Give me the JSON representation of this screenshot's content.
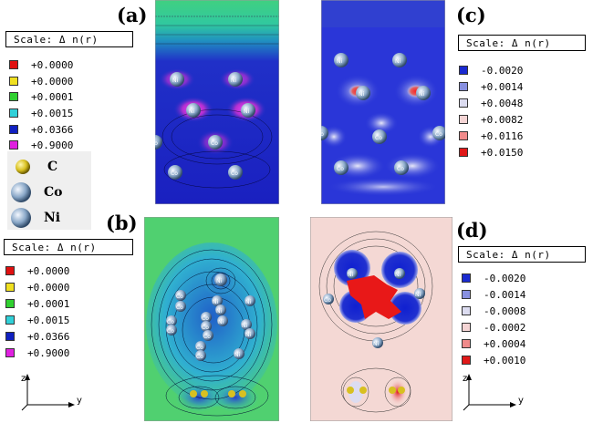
{
  "panels": {
    "a": {
      "letter": "(a)"
    },
    "b": {
      "letter": "(b)"
    },
    "c": {
      "letter": "(c)"
    },
    "d": {
      "letter": "(d)"
    }
  },
  "scale_label": "Scale:  Δ n(r)",
  "legend_a": [
    {
      "value": "+0.0000",
      "color": "#e01010"
    },
    {
      "value": "+0.0000",
      "color": "#f0e020"
    },
    {
      "value": "+0.0001",
      "color": "#30d030"
    },
    {
      "value": "+0.0015",
      "color": "#30d0d8"
    },
    {
      "value": "+0.0366",
      "color": "#1020c0"
    },
    {
      "value": "+0.9000",
      "color": "#e020e0"
    }
  ],
  "legend_b": [
    {
      "value": "+0.0000",
      "color": "#e01010"
    },
    {
      "value": "+0.0000",
      "color": "#f0e020"
    },
    {
      "value": "+0.0001",
      "color": "#30d030"
    },
    {
      "value": "+0.0015",
      "color": "#30d0d8"
    },
    {
      "value": "+0.0366",
      "color": "#1020c0"
    },
    {
      "value": "+0.9000",
      "color": "#e020e0"
    }
  ],
  "legend_c": [
    {
      "value": "-0.0020",
      "color": "#1a2ad0"
    },
    {
      "value": "+0.0014",
      "color": "#8890e0"
    },
    {
      "value": "+0.0048",
      "color": "#dcdcf0"
    },
    {
      "value": "+0.0082",
      "color": "#f4d4d4"
    },
    {
      "value": "+0.0116",
      "color": "#f08a8a"
    },
    {
      "value": "+0.0150",
      "color": "#e01818"
    }
  ],
  "legend_d": [
    {
      "value": "-0.0020",
      "color": "#1a2ad0"
    },
    {
      "value": "-0.0014",
      "color": "#8890e0"
    },
    {
      "value": "-0.0008",
      "color": "#dcdcf0"
    },
    {
      "value": "-0.0002",
      "color": "#f4d4d4"
    },
    {
      "value": "+0.0004",
      "color": "#f08a8a"
    },
    {
      "value": "+0.0010",
      "color": "#e01818"
    }
  ],
  "atom_legend": [
    {
      "label": "C",
      "color": "#d8c020"
    },
    {
      "label": "Co",
      "color": "#8aa8c8"
    },
    {
      "label": "Ni",
      "color": "#8aa8c8"
    }
  ],
  "axes": {
    "z": "z",
    "y": "y"
  },
  "atom_labels": {
    "ni": "Ni",
    "co": "Co"
  }
}
